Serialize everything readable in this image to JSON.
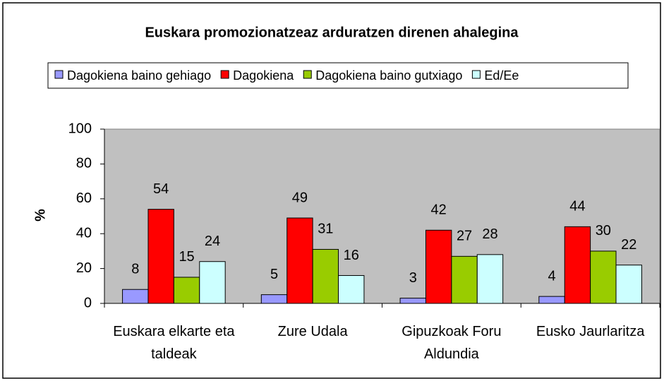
{
  "chart_data": {
    "type": "bar",
    "title": "Euskara promozionatzeaz arduratzen direnen ahalegina",
    "ylabel": "%",
    "categories": [
      "Euskara elkarte eta taldeak",
      "Zure Udala",
      "Gipuzkoak Foru Aldundia",
      "Eusko Jaurlaritza"
    ],
    "series": [
      {
        "name": "Dagokiena baino gehiago",
        "color": "#9999ff",
        "values": [
          8,
          5,
          3,
          4
        ]
      },
      {
        "name": "Dagokiena",
        "color": "#ff0000",
        "values": [
          54,
          49,
          42,
          44
        ]
      },
      {
        "name": "Dagokiena baino gutxiago",
        "color": "#99cc00",
        "values": [
          15,
          31,
          27,
          30
        ]
      },
      {
        "name": "Ed/Ee",
        "color": "#ccffff",
        "values": [
          24,
          16,
          28,
          22
        ]
      }
    ],
    "ylim": [
      0,
      100
    ],
    "yticks": [
      0,
      20,
      40,
      60,
      80,
      100
    ],
    "legend": "top",
    "plot_background": "#c0c0c0"
  }
}
